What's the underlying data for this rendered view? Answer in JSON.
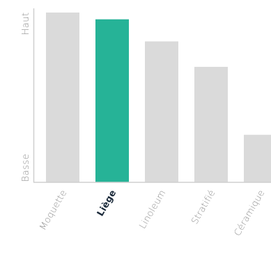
{
  "chart_data": {
    "type": "bar",
    "title": "",
    "xlabel": "",
    "ylabel": "",
    "categories": [
      "Moquette",
      "Liège",
      "Linoleum",
      "Stratifié",
      "Céramique"
    ],
    "values": [
      100,
      96,
      83,
      68,
      28
    ],
    "ylim": [
      0,
      100
    ],
    "y_tick_labels": {
      "high": "Haut",
      "low": "Basse"
    },
    "highlighted_category": "Liège",
    "grid": false,
    "legend": "none",
    "colors": {
      "bar": "#dadada",
      "highlight": "#26b397",
      "axis": "#cfcfcf",
      "label": "#8f8f8f",
      "highlight_label": "#1b2a3a"
    }
  }
}
